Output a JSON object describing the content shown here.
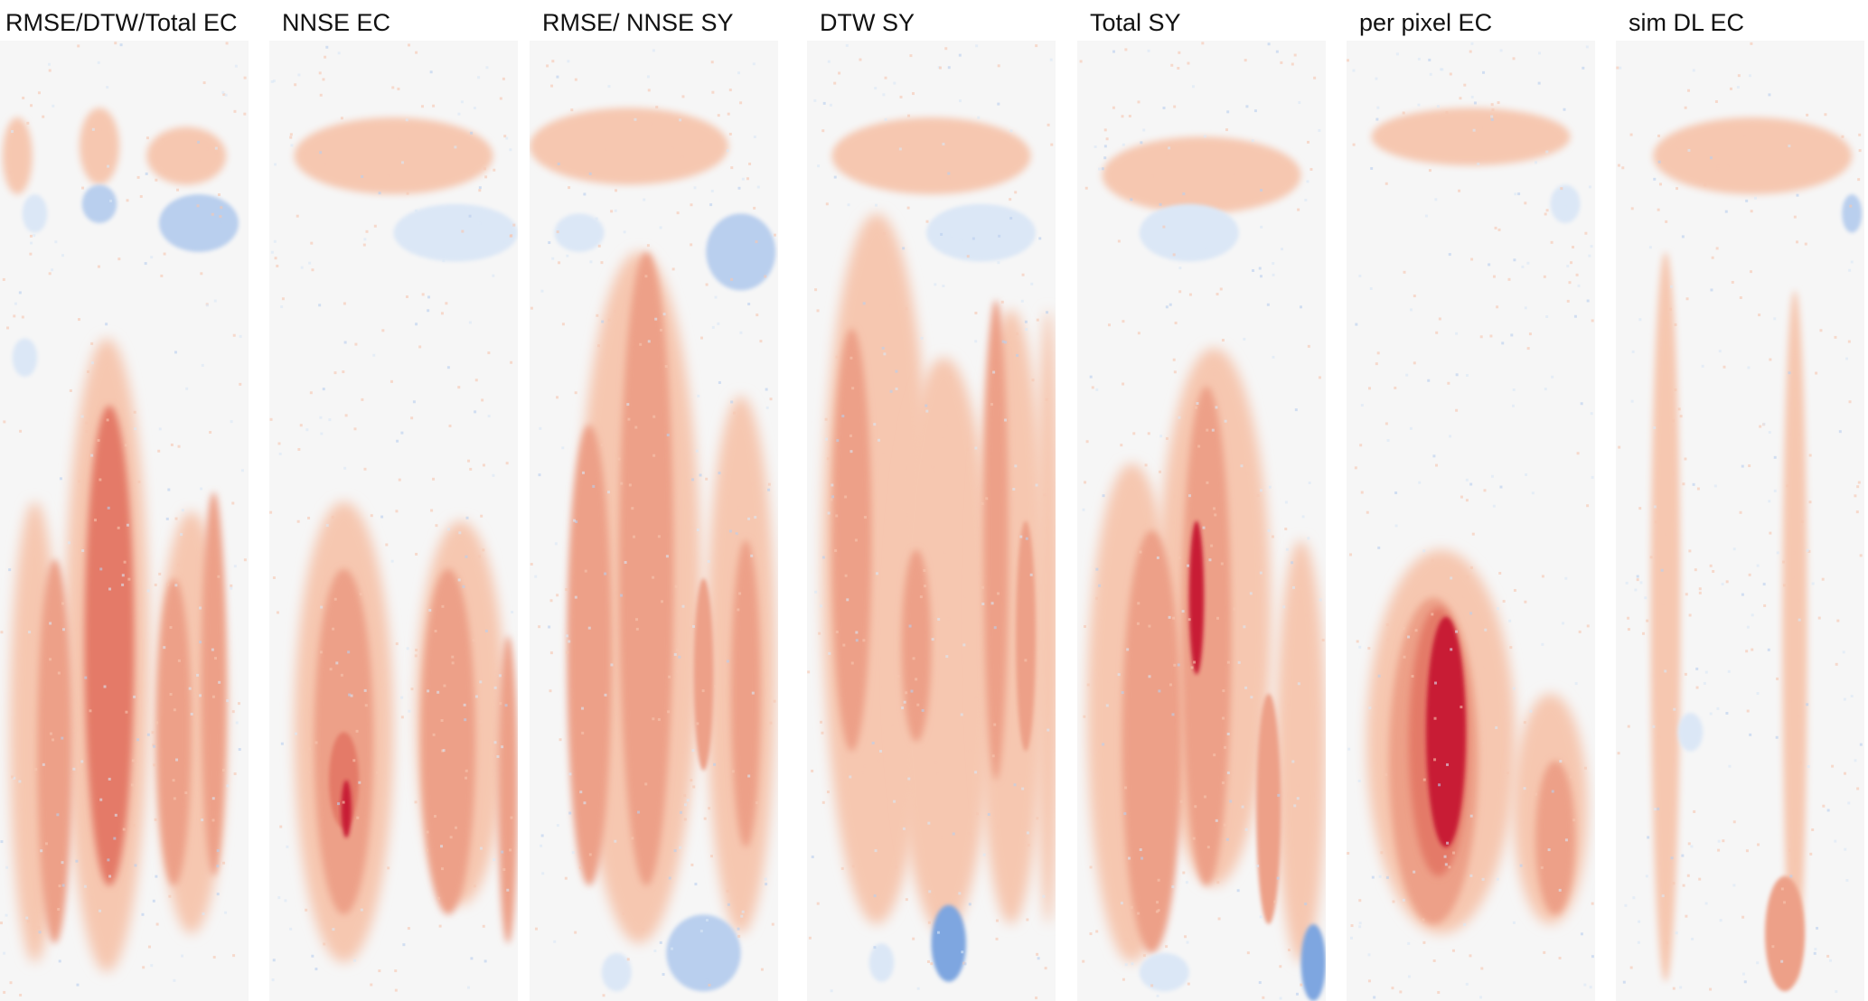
{
  "panels": [
    {
      "title": "RMSE/DTW/Total EC",
      "pattern": "rmse_dtw_total_ec"
    },
    {
      "title": "NNSE EC",
      "pattern": "nnse_ec"
    },
    {
      "title": "RMSE/ NNSE SY",
      "pattern": "rmse_nnse_sy"
    },
    {
      "title": "DTW SY",
      "pattern": "dtw_sy"
    },
    {
      "title": "Total SY",
      "pattern": "total_sy"
    },
    {
      "title": "per pixel EC",
      "pattern": "per_pixel_ec"
    },
    {
      "title": "sim DL EC",
      "pattern": "sim_dl_ec"
    }
  ],
  "colors": {
    "background": "#f6f6f6",
    "red_light": "#f6c7b0",
    "red_mid": "#eda088",
    "red_strong": "#e47a68",
    "red_dark": "#c81b36",
    "blue_light": "#dbe7f6",
    "blue_mid": "#b9cfee",
    "blue_strong": "#7ea6e0"
  }
}
